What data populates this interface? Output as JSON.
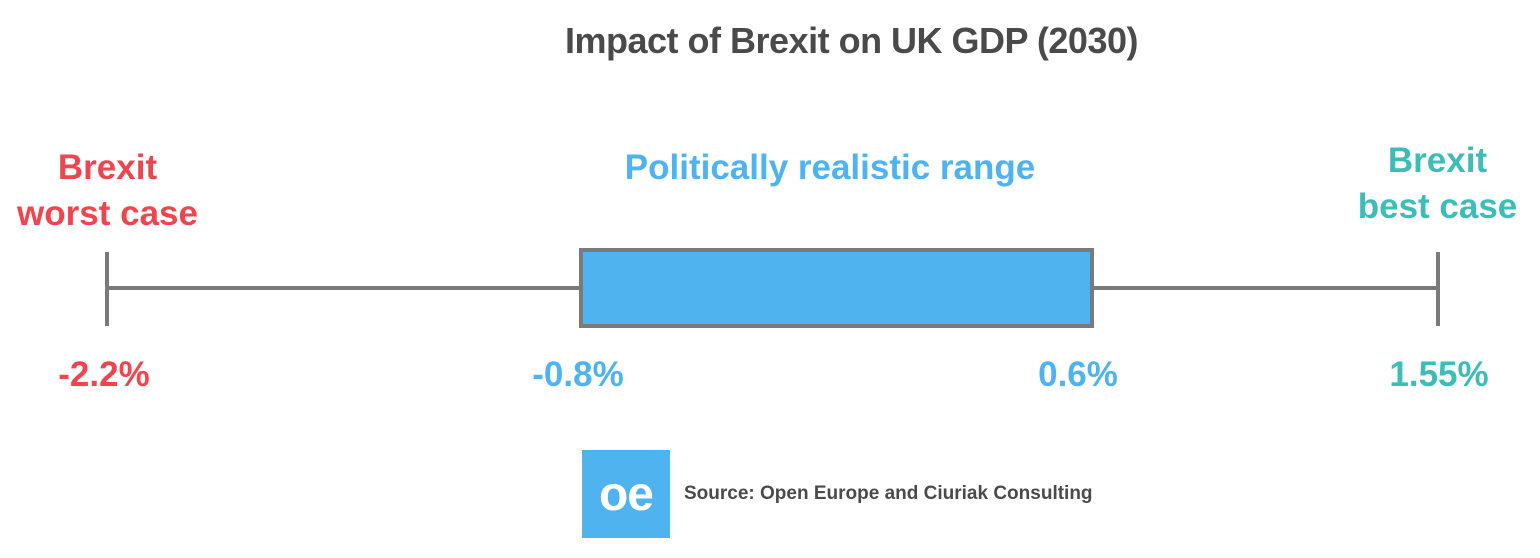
{
  "colors": {
    "title": "#4a4a4a",
    "worst": "#f0454f",
    "realistic": "#4fb3f0",
    "best": "#3cbdb6",
    "whisker": "#7a7a7a",
    "box_fill": "#4fb3f0",
    "source": "#4a4a4a"
  },
  "chart_data": {
    "type": "box",
    "title": "Impact of Brexit on UK GDP (2030)",
    "unit": "%",
    "min": -2.2,
    "q1": -0.8,
    "q3": 0.6,
    "max": 1.55,
    "min_label": "-2.2%",
    "q1_label": "-0.8%",
    "q3_label": "0.6%",
    "max_label": "1.55%",
    "annotations": {
      "worst_line1": "Brexit",
      "worst_line2": "worst case",
      "realistic": "Politically realistic range",
      "best_line1": "Brexit",
      "best_line2": "best case"
    }
  },
  "footer": {
    "logo_text": "oe",
    "source": "Source: Open Europe and Ciuriak Consulting"
  }
}
